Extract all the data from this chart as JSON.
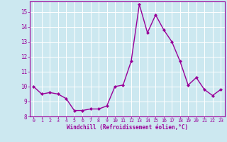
{
  "x": [
    0,
    1,
    2,
    3,
    4,
    5,
    6,
    7,
    8,
    9,
    10,
    11,
    12,
    13,
    14,
    15,
    16,
    17,
    18,
    19,
    20,
    21,
    22,
    23
  ],
  "y": [
    10.0,
    9.5,
    9.6,
    9.5,
    9.2,
    8.4,
    8.4,
    8.5,
    8.5,
    8.7,
    10.0,
    10.1,
    11.7,
    15.5,
    13.6,
    14.8,
    13.8,
    13.0,
    11.7,
    10.1,
    10.6,
    9.8,
    9.4,
    9.8
  ],
  "line_color": "#990099",
  "marker": "D",
  "marker_size": 2.0,
  "bg_color": "#cce8f0",
  "grid_color": "#ffffff",
  "xlabel": "Windchill (Refroidissement éolien,°C)",
  "tick_color": "#990099",
  "ylim": [
    8,
    15.7
  ],
  "xlim": [
    -0.5,
    23.5
  ],
  "yticks": [
    8,
    9,
    10,
    11,
    12,
    13,
    14,
    15
  ],
  "xticks": [
    0,
    1,
    2,
    3,
    4,
    5,
    6,
    7,
    8,
    9,
    10,
    11,
    12,
    13,
    14,
    15,
    16,
    17,
    18,
    19,
    20,
    21,
    22,
    23
  ],
  "xtick_labels": [
    "0",
    "1",
    "2",
    "3",
    "4",
    "5",
    "6",
    "7",
    "8",
    "9",
    "10",
    "11",
    "12",
    "13",
    "14",
    "15",
    "16",
    "17",
    "18",
    "19",
    "20",
    "21",
    "22",
    "23"
  ],
  "ytick_labels": [
    "8",
    "9",
    "10",
    "11",
    "12",
    "13",
    "14",
    "15"
  ],
  "linewidth": 1.0
}
